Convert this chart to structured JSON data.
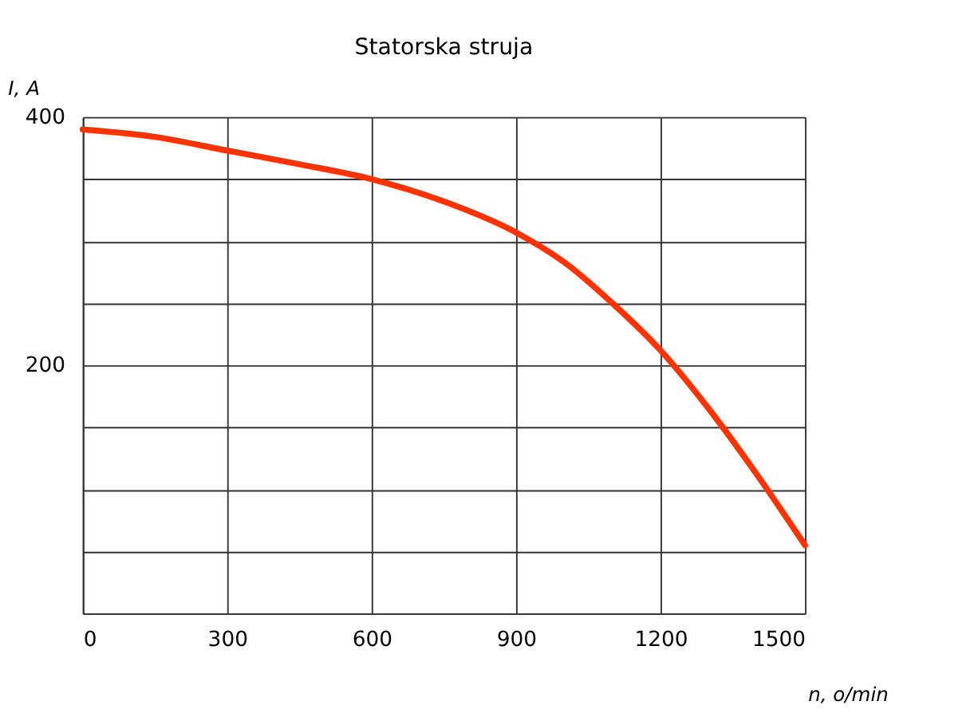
{
  "chart_data": {
    "type": "line",
    "title": "Statorska struja",
    "xlabel": "n, o/min",
    "ylabel": "I, A",
    "x": [
      0,
      150,
      300,
      450,
      600,
      750,
      900,
      1000,
      1100,
      1200,
      1300,
      1400,
      1500
    ],
    "series": [
      {
        "color": "#ff3300",
        "values": [
          390,
          384,
          373,
          362,
          350,
          332,
          307,
          283,
          250,
          212,
          165,
          112,
          55
        ]
      }
    ],
    "xlim": [
      0,
      1500
    ],
    "ylim": [
      0,
      400
    ],
    "xticks": [
      0,
      300,
      600,
      900,
      1200,
      1500
    ],
    "yticks": [
      {
        "value": 0,
        "label": null
      },
      {
        "value": 50,
        "label": null
      },
      {
        "value": 100,
        "label": null
      },
      {
        "value": 150,
        "label": null
      },
      200,
      {
        "value": 250,
        "label": null
      },
      {
        "value": 300,
        "label": null
      },
      {
        "value": 350,
        "label": null
      },
      400
    ],
    "grid": true,
    "marker": "none",
    "line_style": "solid"
  }
}
